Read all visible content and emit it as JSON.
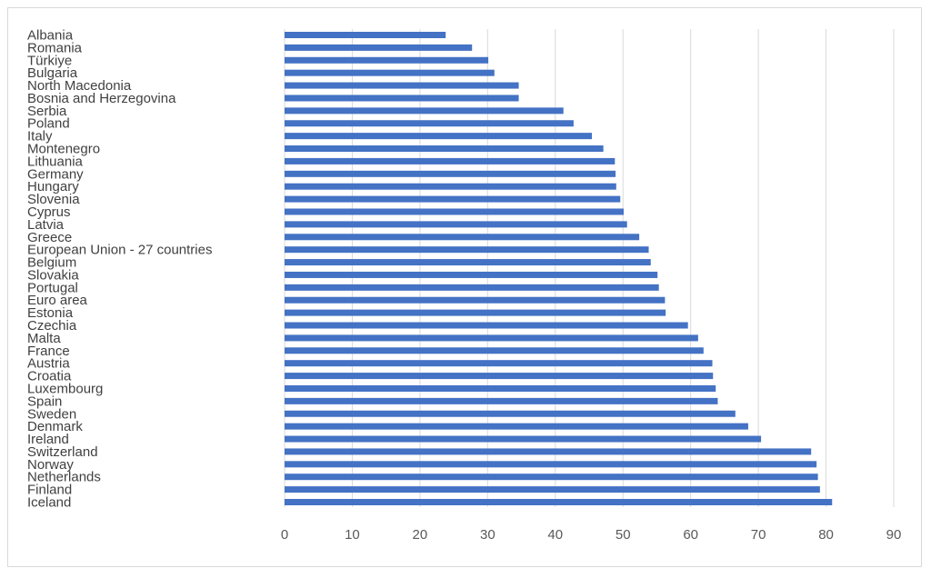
{
  "chart_data": {
    "type": "bar",
    "orientation": "horizontal",
    "categories": [
      "Albania",
      "Romania",
      "Türkiye",
      "Bulgaria",
      "North Macedonia",
      "Bosnia and Herzegovina",
      "Serbia",
      "Poland",
      "Italy",
      "Montenegro",
      "Lithuania",
      "Germany",
      "Hungary",
      "Slovenia",
      "Cyprus",
      "Latvia",
      "Greece",
      "European Union - 27 countries",
      "Belgium",
      "Slovakia",
      "Portugal",
      "Euro area",
      "Estonia",
      "Czechia",
      "Malta",
      "France",
      "Austria",
      "Croatia",
      "Luxembourg",
      "Spain",
      "Sweden",
      "Denmark",
      "Ireland",
      "Switzerland",
      "Norway",
      "Netherlands",
      "Finland",
      "Iceland"
    ],
    "values": [
      23.8,
      27.7,
      30.1,
      31.0,
      34.6,
      34.6,
      41.2,
      42.7,
      45.4,
      47.1,
      48.8,
      48.9,
      49.0,
      49.6,
      50.1,
      50.6,
      52.4,
      53.8,
      54.1,
      55.1,
      55.3,
      56.2,
      56.3,
      59.6,
      61.1,
      61.9,
      63.2,
      63.3,
      63.7,
      64.0,
      66.6,
      68.5,
      70.4,
      77.8,
      78.6,
      78.8,
      79.1,
      80.9
    ],
    "x_ticks": [
      "0",
      "10",
      "20",
      "30",
      "40",
      "50",
      "60",
      "70",
      "80",
      "90"
    ],
    "xlim": [
      0,
      90
    ],
    "bar_color": "#4472c4",
    "grid": true,
    "grid_color": "#d9d9d9",
    "title": "",
    "xlabel": "",
    "ylabel": ""
  }
}
